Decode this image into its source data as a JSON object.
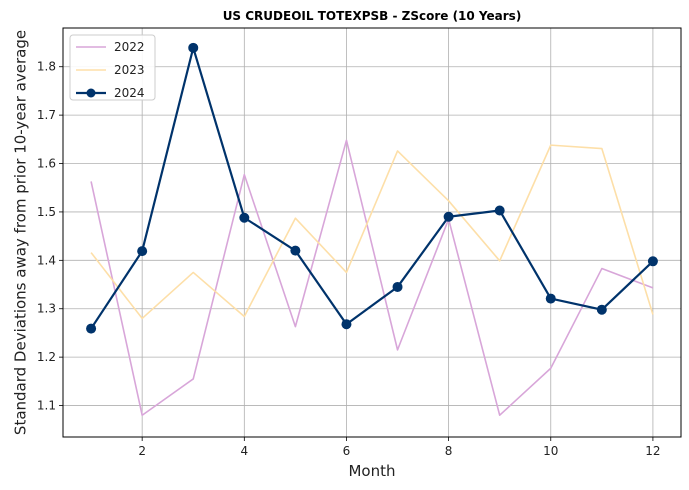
{
  "chart_data": {
    "type": "line",
    "title": "US CRUDEOIL TOTEXPSB - ZScore (10 Years)",
    "xlabel": "Month",
    "ylabel": "Standard Deviations away from prior 10-year average",
    "x": [
      1,
      2,
      3,
      4,
      5,
      6,
      7,
      8,
      9,
      10,
      11,
      12
    ],
    "xlim": [
      0.45,
      12.55
    ],
    "ylim": [
      1.035,
      1.88
    ],
    "xticks": [
      "2",
      "4",
      "6",
      "8",
      "10",
      "12"
    ],
    "yticks": [
      "1.1",
      "1.2",
      "1.3",
      "1.4",
      "1.5",
      "1.6",
      "1.7",
      "1.8"
    ],
    "grid": true,
    "legend_position": "top-left",
    "series": [
      {
        "name": "2022",
        "color": "#d8a6d9",
        "markers": false,
        "values": [
          1.563,
          1.08,
          1.155,
          1.577,
          1.263,
          1.648,
          1.215,
          1.485,
          1.08,
          1.177,
          1.383,
          1.343
        ]
      },
      {
        "name": "2023",
        "color": "#fddfa8",
        "markers": false,
        "values": [
          1.416,
          1.28,
          1.375,
          1.284,
          1.487,
          1.375,
          1.626,
          1.523,
          1.399,
          1.638,
          1.631,
          1.288
        ]
      },
      {
        "name": "2024",
        "color": "#00336b",
        "markers": true,
        "values": [
          1.259,
          1.419,
          1.839,
          1.488,
          1.42,
          1.268,
          1.345,
          1.49,
          1.503,
          1.321,
          1.298,
          1.398
        ]
      }
    ]
  }
}
